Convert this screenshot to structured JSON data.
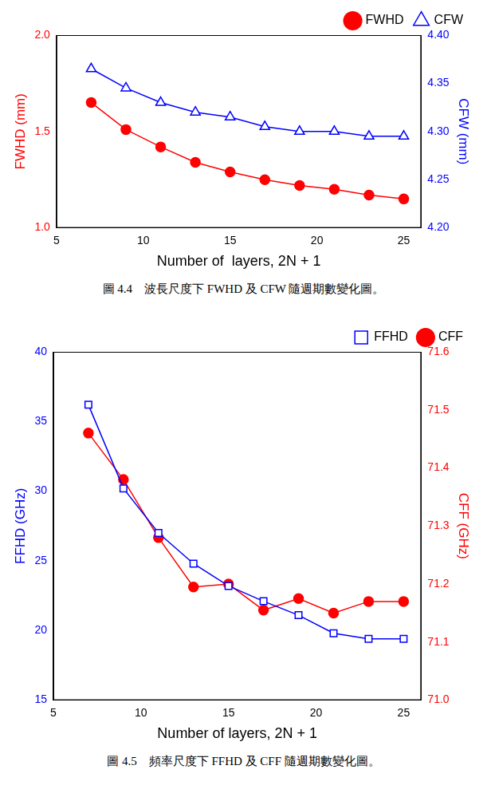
{
  "chart_data": [
    {
      "type": "line",
      "caption": "圖 4.4　波長尺度下 FWHD 及 CFW 隨週期數變化圖。",
      "x_label": "Number of  layers, 2N + 1",
      "y_label": "FWHD (mm)",
      "y2_label": "CFW (mm)",
      "x": [
        7,
        9,
        11,
        13,
        15,
        17,
        19,
        21,
        23,
        25
      ],
      "series": [
        {
          "name": "FWHD",
          "color": "#ff0000",
          "marker": "circle",
          "line_style": "solid",
          "values": [
            1.65,
            1.51,
            1.42,
            1.34,
            1.29,
            1.25,
            1.22,
            1.2,
            1.17,
            1.15
          ]
        },
        {
          "name": "CFW",
          "color": "#0000ff",
          "marker": "open-triangle",
          "line_style": "solid",
          "axis": "y2",
          "values": [
            4.365,
            4.345,
            4.33,
            4.32,
            4.315,
            4.305,
            4.3,
            4.3,
            4.295,
            4.295
          ]
        }
      ],
      "xlim": [
        5,
        26
      ],
      "xticks": [
        5,
        10,
        15,
        20,
        25
      ],
      "ylim": [
        1.0,
        2.0
      ],
      "yticks": [
        {
          "value": 1.0,
          "label": "1.0"
        },
        {
          "value": 1.5,
          "label": "1.5"
        },
        {
          "value": 2.0,
          "label": "2.0"
        }
      ],
      "y2lim": [
        4.2,
        4.4
      ],
      "y2ticks": [
        {
          "value": 4.2,
          "label": "4.20"
        },
        {
          "value": 4.25,
          "label": "4.25"
        },
        {
          "value": 4.3,
          "label": "4.30"
        },
        {
          "value": 4.35,
          "label": "4.35"
        },
        {
          "value": 4.4,
          "label": "4.40"
        }
      ],
      "grid": false,
      "legend": "top right"
    },
    {
      "type": "line",
      "caption": "圖 4.5　頻率尺度下 FFHD 及 CFF 隨週期數變化圖。",
      "x_label": "Number of layers, 2N + 1",
      "y_label": "FFHD (GHz)",
      "y2_label": "CFF (GHz)",
      "x": [
        7,
        9,
        11,
        13,
        15,
        17,
        19,
        21,
        23,
        25
      ],
      "series": [
        {
          "name": "FFHD",
          "color": "#0000ff",
          "marker": "open-square",
          "line_style": "solid",
          "values": [
            36.2,
            30.2,
            27.0,
            24.8,
            23.2,
            22.1,
            21.1,
            19.8,
            19.4,
            19.4
          ]
        },
        {
          "name": "CFF",
          "color": "#ff0000",
          "marker": "circle",
          "line_style": "solid",
          "axis": "y2",
          "values": [
            71.46,
            71.38,
            71.28,
            71.195,
            71.2,
            71.155,
            71.175,
            71.15,
            71.17,
            71.17
          ]
        }
      ],
      "xlim": [
        5,
        26
      ],
      "xticks": [
        5,
        10,
        15,
        20,
        25
      ],
      "ylim": [
        15,
        40
      ],
      "yticks": [
        15,
        20,
        25,
        30,
        35,
        40
      ],
      "y2lim": [
        71.0,
        71.6
      ],
      "y2ticks": [
        {
          "value": 71.0,
          "label": "71.0"
        },
        {
          "value": 71.1,
          "label": "71.1"
        },
        {
          "value": 71.2,
          "label": "71.2"
        },
        {
          "value": 71.3,
          "label": "71.3"
        },
        {
          "value": 71.4,
          "label": "71.4"
        },
        {
          "value": 71.5,
          "label": "71.5"
        },
        {
          "value": 71.6,
          "label": "71.6"
        }
      ],
      "grid": false,
      "legend": "top right"
    }
  ]
}
